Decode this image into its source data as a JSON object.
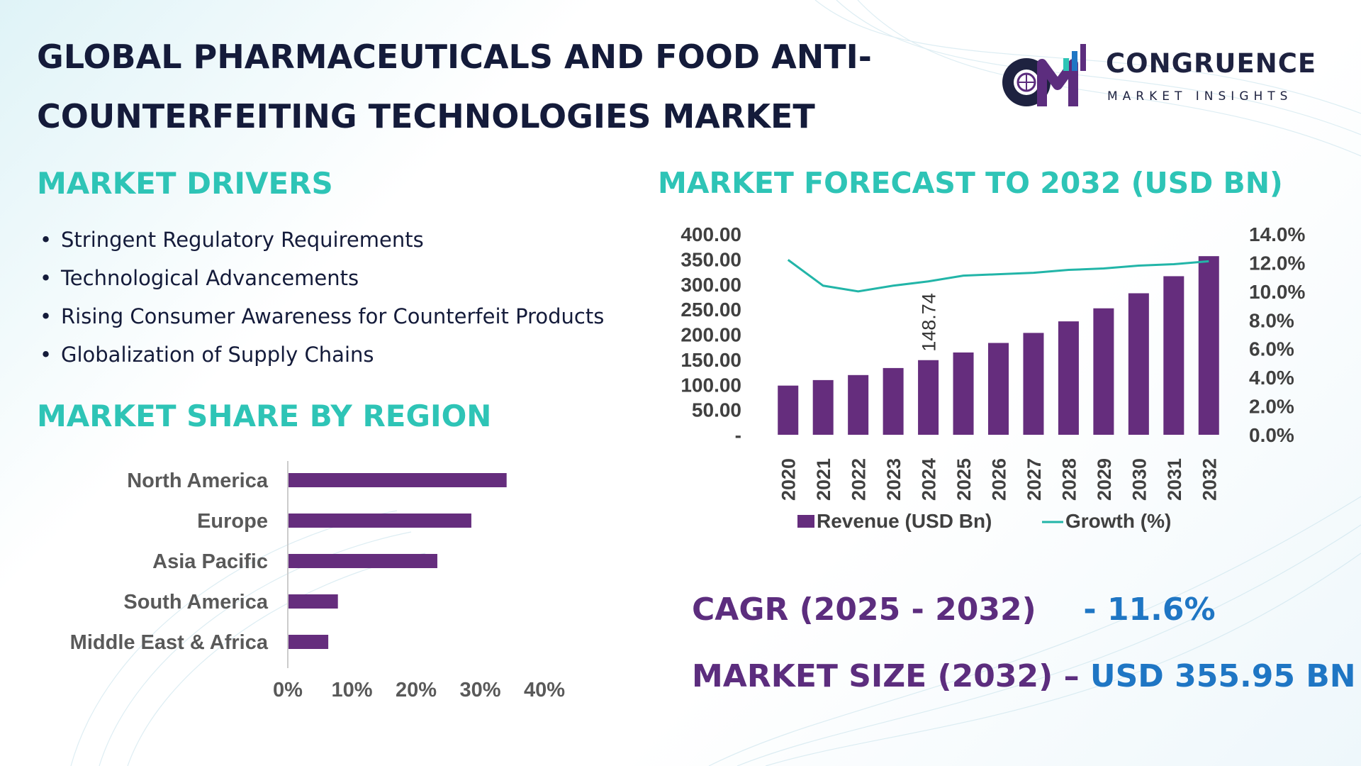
{
  "title_line1": "GLOBAL PHARMACEUTICALS AND FOOD ANTI-",
  "title_line2": "COUNTERFEITING TECHNOLOGIES MARKET",
  "logo": {
    "name": "CONGRUENCE",
    "tagline": "MARKET INSIGHTS"
  },
  "drivers": {
    "heading": "MARKET DRIVERS",
    "items": [
      "Stringent Regulatory Requirements",
      "Technological Advancements",
      "Rising Consumer Awareness for Counterfeit Products",
      "Globalization of Supply Chains"
    ]
  },
  "forecast_heading": "MARKET FORECAST TO 2032 (USD BN)",
  "region_heading": "MARKET SHARE BY REGION",
  "kpis": {
    "cagr_label": "CAGR (2025 - 2032)",
    "cagr_value": "- 11.6%",
    "size_label": "MARKET SIZE (2032)",
    "size_dash": "–",
    "size_value": "USD 355.95 BN"
  },
  "colors": {
    "bar": "#652d7d",
    "line": "#22b5a8",
    "heading_teal": "#2ec4b6",
    "kpi_purple": "#5c2d7e",
    "kpi_blue": "#1f76c4"
  },
  "chart_data": [
    {
      "type": "bar",
      "title": "",
      "categories": [
        "2020",
        "2021",
        "2022",
        "2023",
        "2024",
        "2025",
        "2026",
        "2027",
        "2028",
        "2029",
        "2030",
        "2031",
        "2032"
      ],
      "series": [
        {
          "name": "Revenue (USD Bn)",
          "type": "bar",
          "axis": "left",
          "values": [
            98,
            109,
            119,
            133,
            148.74,
            164,
            183,
            203,
            226,
            252,
            282,
            316,
            355.95
          ]
        },
        {
          "name": "Growth (%)",
          "type": "line",
          "axis": "right",
          "values": [
            12.2,
            10.4,
            10.0,
            10.4,
            10.7,
            11.1,
            11.2,
            11.3,
            11.5,
            11.6,
            11.8,
            11.9,
            12.1
          ]
        }
      ],
      "data_labels": [
        {
          "category": "2024",
          "text": "148.74"
        }
      ],
      "y_left": {
        "range": [
          0,
          400
        ],
        "ticks": [
          "-",
          "50.00",
          "100.00",
          "150.00",
          "200.00",
          "250.00",
          "300.00",
          "350.00",
          "400.00"
        ]
      },
      "y_right": {
        "range": [
          0,
          14
        ],
        "ticks": [
          "0.0%",
          "2.0%",
          "4.0%",
          "6.0%",
          "8.0%",
          "10.0%",
          "12.0%",
          "14.0%"
        ]
      },
      "legend": {
        "position": "bottom",
        "entries": [
          "Revenue (USD Bn)",
          "Growth (%)"
        ]
      },
      "grid": false
    },
    {
      "type": "bar",
      "orientation": "horizontal",
      "title": "",
      "categories": [
        "North America",
        "Europe",
        "Asia Pacific",
        "South America",
        "Middle East & Africa"
      ],
      "values": [
        34,
        28.5,
        23.2,
        7.7,
        6.2
      ],
      "x_range": [
        0,
        40
      ],
      "x_ticks": [
        "0%",
        "10%",
        "20%",
        "30%",
        "40%"
      ],
      "grid": false
    }
  ]
}
